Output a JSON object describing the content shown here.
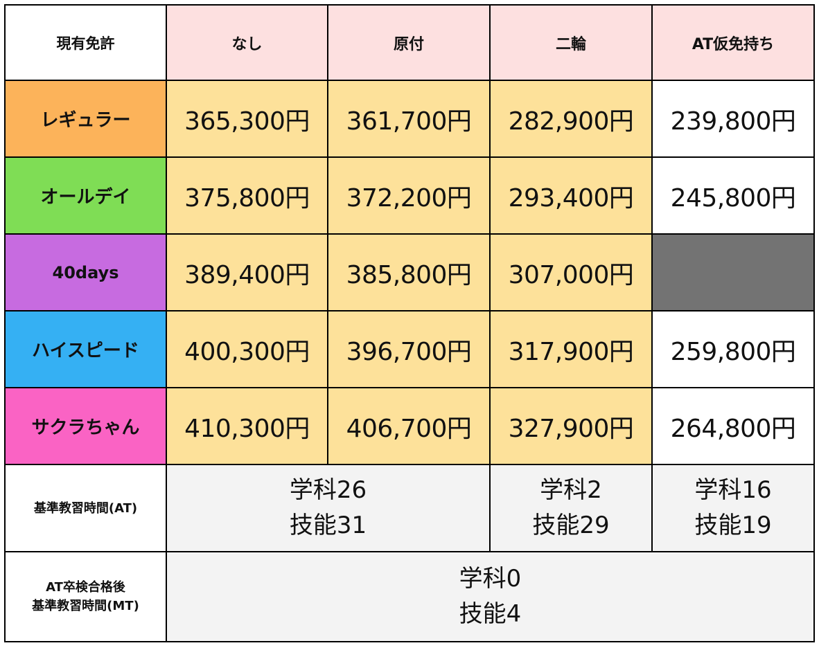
{
  "header": {
    "corner": "現有免許",
    "columns": [
      "なし",
      "原付",
      "二輪",
      "AT仮免持ち"
    ]
  },
  "plans": [
    {
      "name": "レギュラー",
      "color": "#fcb35a",
      "prices": [
        "365,300円",
        "361,700円",
        "282,900円",
        "239,800円"
      ]
    },
    {
      "name": "オールデイ",
      "color": "#7fdd55",
      "prices": [
        "375,800円",
        "372,200円",
        "293,400円",
        "245,800円"
      ]
    },
    {
      "name": "40days",
      "color": "#c76be0",
      "prices": [
        "389,400円",
        "385,800円",
        "307,000円",
        ""
      ]
    },
    {
      "name": "ハイスピード",
      "color": "#35b0f3",
      "prices": [
        "400,300円",
        "396,700円",
        "317,900円",
        "259,800円"
      ]
    },
    {
      "name": "サクラちゃん",
      "color": "#fa63c4",
      "prices": [
        "410,300円",
        "406,700円",
        "327,900円",
        "264,800円"
      ]
    }
  ],
  "hours_at": {
    "label": "基準教習時間(AT)",
    "groups": [
      {
        "line1": "学科26",
        "line2": "技能31"
      },
      {
        "line1": "学科2",
        "line2": "技能29"
      },
      {
        "line1": "学科16",
        "line2": "技能19"
      }
    ]
  },
  "hours_mt": {
    "label_line1": "AT卒検合格後",
    "label_line2": "基準教習時間(MT)",
    "line1": "学科0",
    "line2": "技能4"
  },
  "colors": {
    "header_bg": "#fde0e0",
    "price_bg": "#fde19a",
    "unavailable_bg": "#737373",
    "hours_bg": "#f3f3f3"
  }
}
